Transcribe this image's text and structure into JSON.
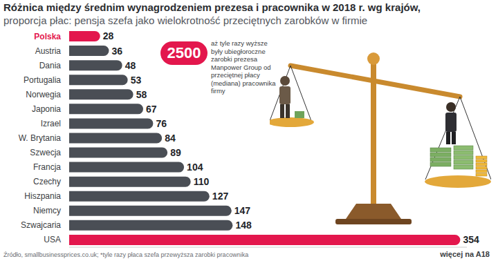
{
  "chart_data": {
    "type": "bar",
    "orientation": "horizontal",
    "title": "Różnica między średnim wynagrodzeniem prezesa i pracownika w 2018 r. wg krajów,",
    "subtitle": "proporcja płac: pensja szefa jako wielokrotność przeciętnych zarobków w firmie",
    "categories": [
      "Polska",
      "Austria",
      "Dania",
      "Portugalia",
      "Norwegia",
      "Japonia",
      "Izrael",
      "W. Brytania",
      "Szwecja",
      "Francja",
      "Czechy",
      "Hiszpania",
      "Niemcy",
      "Szwajcaria",
      "USA"
    ],
    "values": [
      28,
      36,
      48,
      53,
      58,
      67,
      76,
      84,
      89,
      104,
      110,
      127,
      147,
      148,
      354
    ],
    "colors": [
      "#e3174d",
      "#4a4e55",
      "#4a4e55",
      "#4a4e55",
      "#4a4e55",
      "#4a4e55",
      "#4a4e55",
      "#4a4e55",
      "#4a4e55",
      "#4a4e55",
      "#4a4e55",
      "#4a4e55",
      "#4a4e55",
      "#4a4e55",
      "#e3174d"
    ],
    "xlim": [
      0,
      360
    ],
    "data_labels": true,
    "tick_labels": "y",
    "grid": false,
    "annotation": {
      "value": 2500,
      "text": "aż tyle razy wyższe były ubiegłoroczne zarobki prezesa Manpower Group od przeciętnej płacy (mediana) pracownika firmy"
    },
    "source": "Źródło, smallbusinessprices.co.uk; *tyle razy płaca szefa przewyższa zarobki pracownika",
    "footer": "więcej na A18"
  }
}
